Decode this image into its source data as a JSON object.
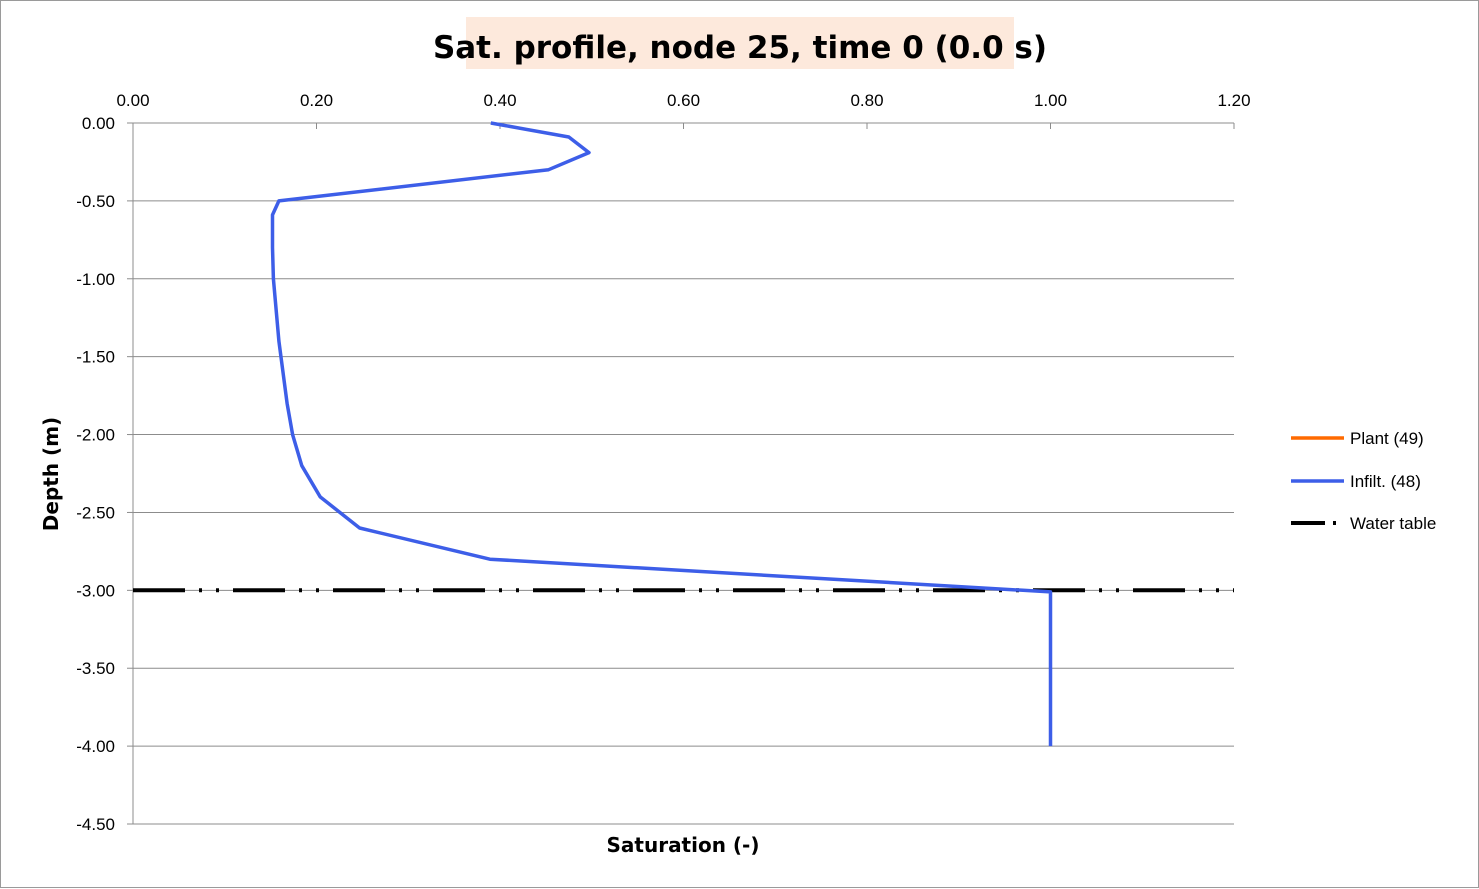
{
  "chart_data": {
    "type": "line",
    "title": "Sat. profile, node 25, time 0 (0.0 s)",
    "xlabel": "Saturation (-)",
    "ylabel": "Depth (m)",
    "xlim": [
      0,
      1.2
    ],
    "ylim": [
      -4.5,
      0
    ],
    "x_ticks": [
      "0.00",
      "0.20",
      "0.40",
      "0.60",
      "0.80",
      "1.00",
      "1.20"
    ],
    "y_ticks": [
      "0.00",
      "-0.50",
      "-1.00",
      "-1.50",
      "-2.00",
      "-2.50",
      "-3.00",
      "-3.50",
      "-4.00",
      "-4.50"
    ],
    "x_axis_position": "top",
    "grid": "horizontal",
    "legend_position": "right",
    "series": [
      {
        "name": "Plant (49)",
        "color": "#ff6a00",
        "style": "solid",
        "points": []
      },
      {
        "name": "Infilt. (48)",
        "color": "#3d5ee8",
        "style": "solid",
        "points": [
          [
            0.39,
            0.0
          ],
          [
            0.475,
            -0.09
          ],
          [
            0.497,
            -0.19
          ],
          [
            0.453,
            -0.3
          ],
          [
            0.159,
            -0.5
          ],
          [
            0.152,
            -0.59
          ],
          [
            0.152,
            -0.8
          ],
          [
            0.153,
            -1.0
          ],
          [
            0.159,
            -1.4
          ],
          [
            0.168,
            -1.8
          ],
          [
            0.174,
            -2.0
          ],
          [
            0.184,
            -2.2
          ],
          [
            0.204,
            -2.4
          ],
          [
            0.247,
            -2.6
          ],
          [
            0.389,
            -2.8
          ],
          [
            0.97,
            -3.0
          ],
          [
            1.0,
            -3.01
          ],
          [
            1.0,
            -4.0
          ]
        ]
      },
      {
        "name": "Water table",
        "color": "#000000",
        "style": "dash-dot-dot",
        "points": [
          [
            0.0,
            -3.0
          ],
          [
            1.2,
            -3.0
          ]
        ]
      }
    ]
  }
}
